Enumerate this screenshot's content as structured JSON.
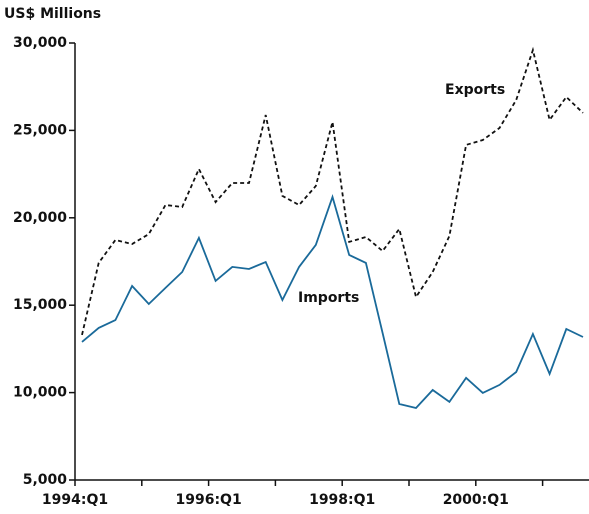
{
  "chart_data": {
    "type": "line",
    "y_label": "US$ Millions",
    "categories": [
      "1994:Q1",
      null,
      null,
      null,
      null,
      null,
      null,
      null,
      "1996:Q1",
      null,
      null,
      null,
      null,
      null,
      null,
      null,
      "1998:Q1",
      null,
      null,
      null,
      null,
      null,
      null,
      null,
      "2000:Q1",
      null,
      null,
      null,
      null,
      null,
      null
    ],
    "series": [
      {
        "name": "Exports",
        "color": "#111111",
        "linestyle": "dashed",
        "values": [
          13300,
          17420,
          18730,
          18500,
          19070,
          20730,
          20620,
          22790,
          20900,
          21990,
          21990,
          25880,
          21250,
          20730,
          21820,
          25480,
          18620,
          18900,
          18100,
          19360,
          15470,
          16900,
          18960,
          24170,
          24450,
          25140,
          26740,
          29600,
          25600,
          26910,
          26000
        ]
      },
      {
        "name": "Imports",
        "color": "#1a6a9a",
        "linestyle": "solid",
        "values": [
          12900,
          13700,
          14150,
          16100,
          15070,
          15990,
          16900,
          18850,
          16390,
          17190,
          17070,
          17470,
          15300,
          17190,
          18450,
          21190,
          17870,
          17420,
          13410,
          9350,
          9120,
          10150,
          9470,
          10840,
          9980,
          10440,
          11180,
          13350,
          11070,
          13640,
          13180
        ]
      }
    ],
    "ylim": [
      5000,
      30000
    ],
    "yticks": [
      {
        "value": 5000,
        "label": "5,000"
      },
      {
        "value": 10000,
        "label": "10,000"
      },
      {
        "value": 15000,
        "label": "15,000"
      },
      {
        "value": 20000,
        "label": "20,000"
      },
      {
        "value": 25000,
        "label": "25,000"
      },
      {
        "value": 30000,
        "label": "30,000"
      }
    ],
    "grid": false
  }
}
